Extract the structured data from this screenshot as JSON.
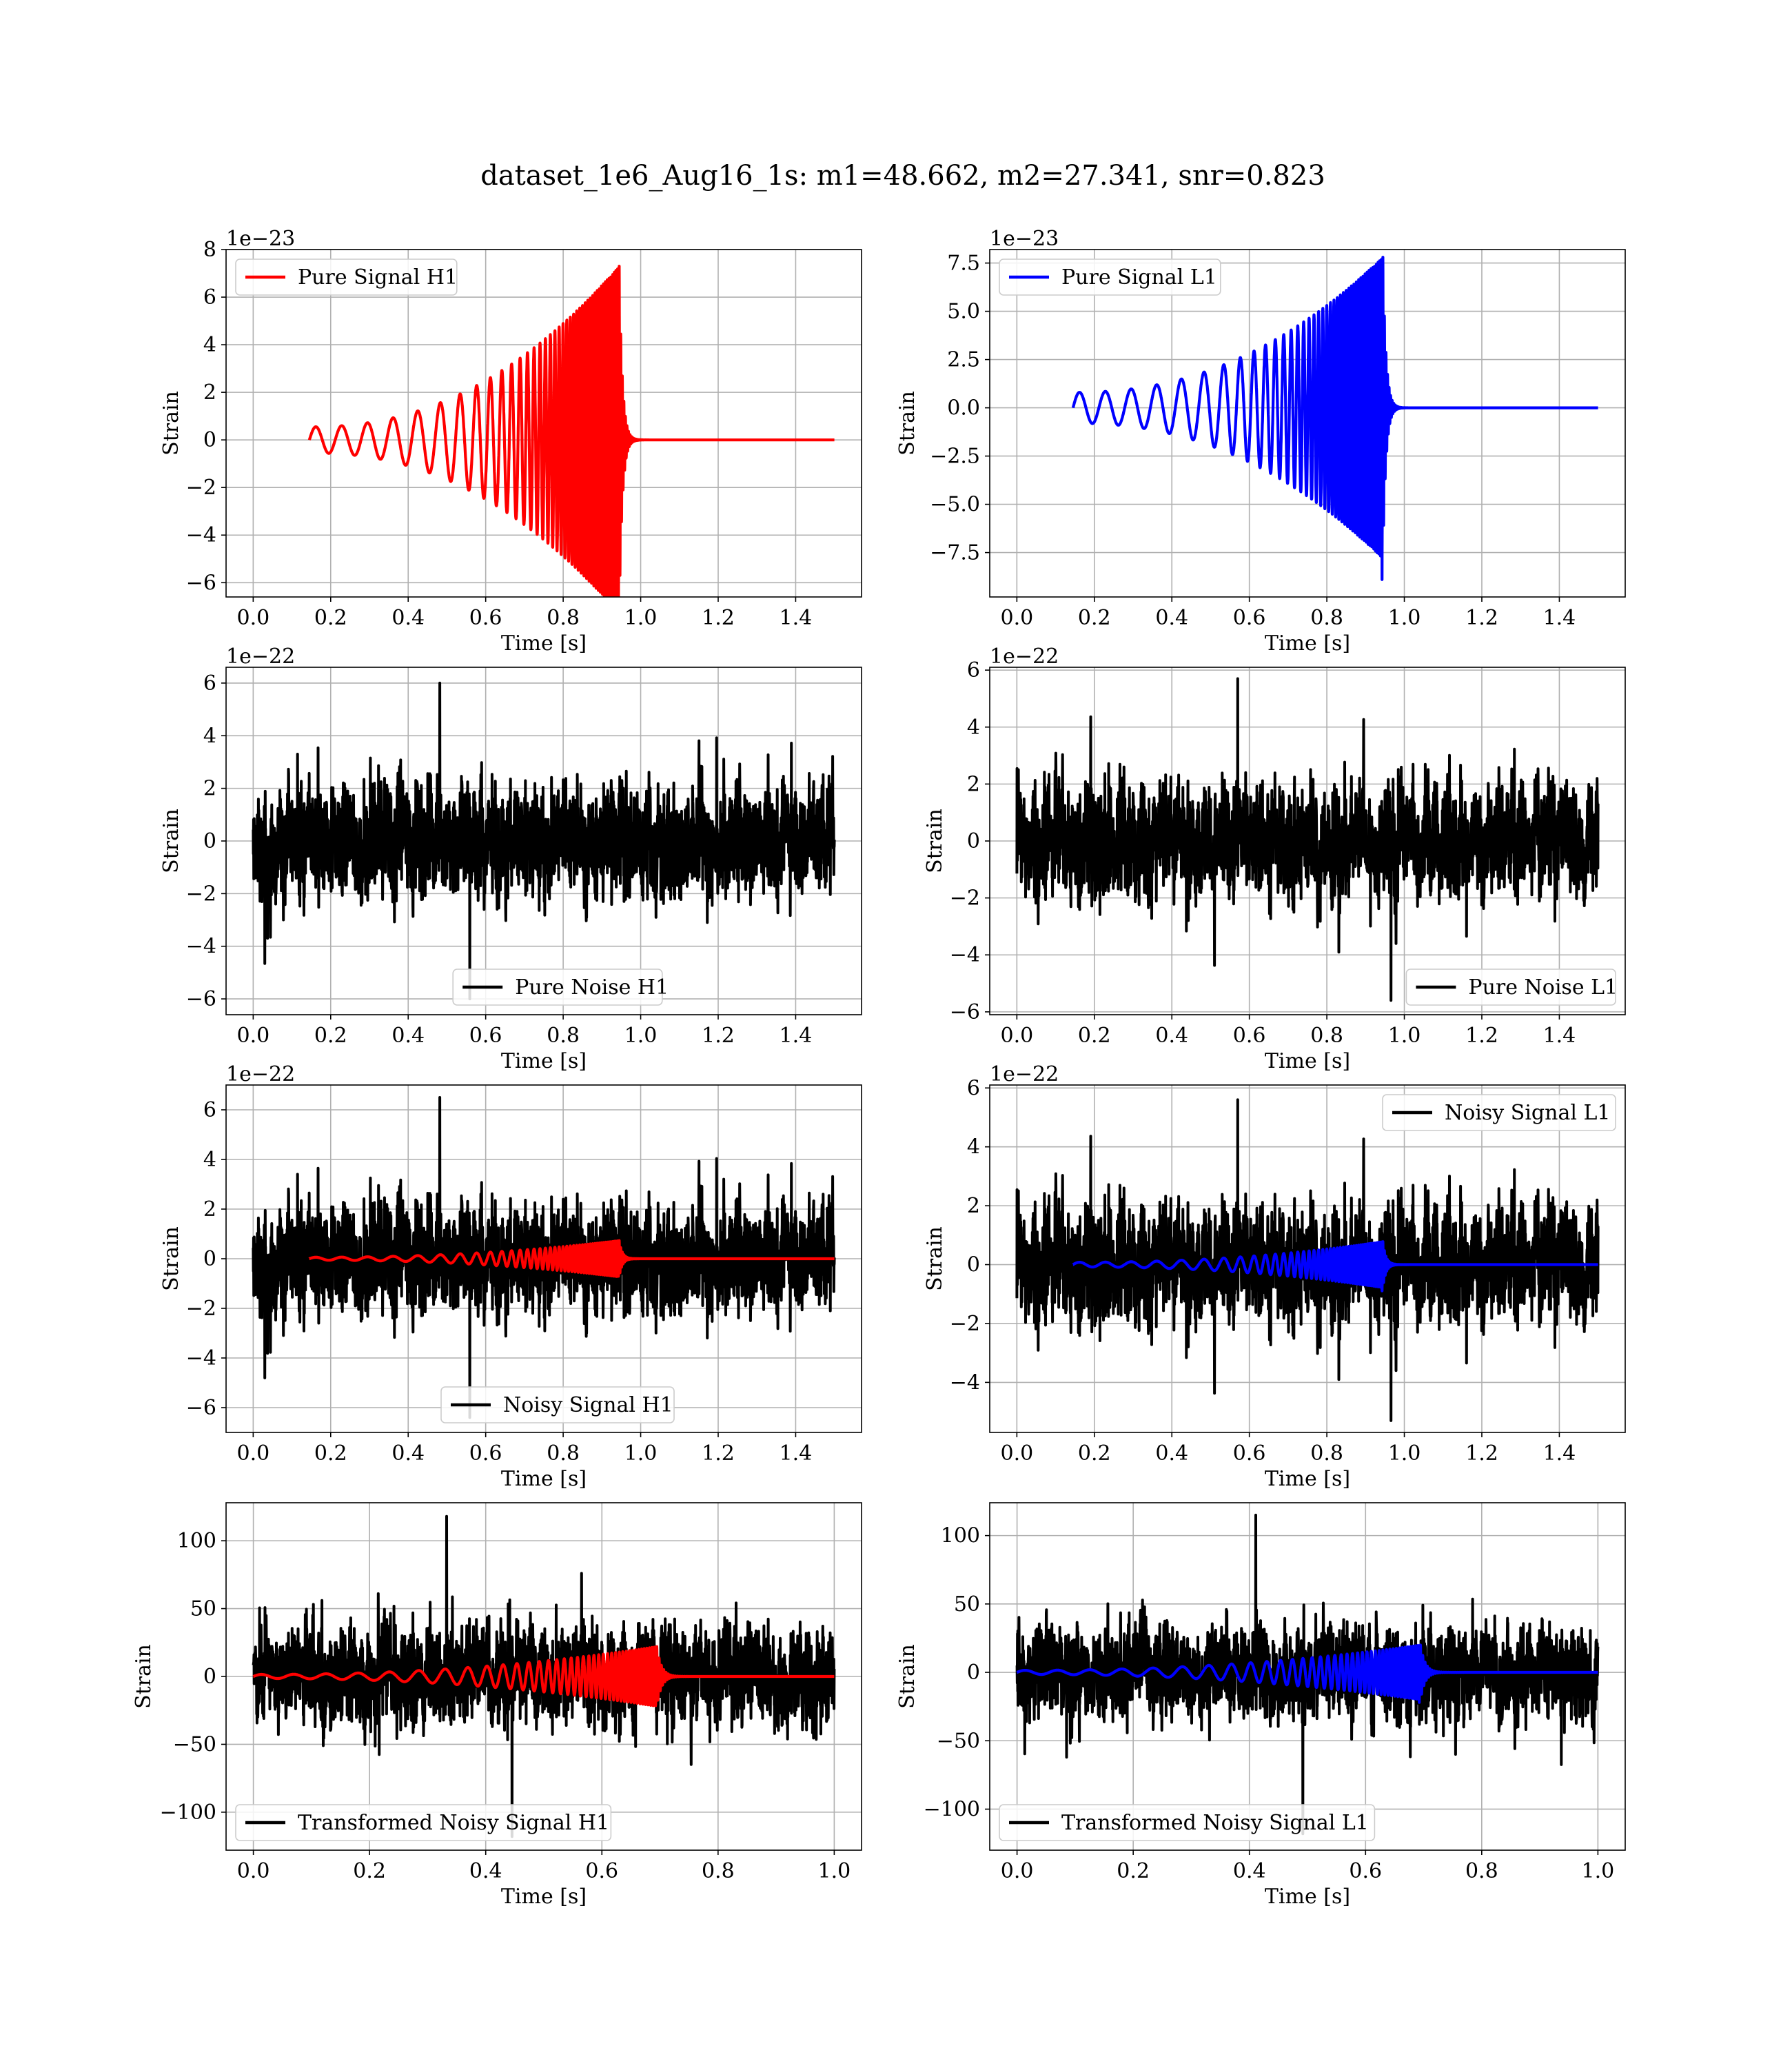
{
  "figure": {
    "title": "dataset_1e6_Aug16_1s: m1=48.662, m2=27.341, snr=0.823"
  },
  "chart_data": [
    {
      "type": "line",
      "id": "pure-signal-h1",
      "xlabel": "Time [s]",
      "ylabel": "Strain",
      "offset_text": "1e−23",
      "xlim": [
        -0.07,
        1.57
      ],
      "ylim": [
        -6.6,
        8
      ],
      "xticks": [
        0.0,
        0.2,
        0.4,
        0.6,
        0.8,
        1.0,
        1.2,
        1.4
      ],
      "xtick_labels": [
        "0.0",
        "0.2",
        "0.4",
        "0.6",
        "0.8",
        "1.0",
        "1.2",
        "1.4"
      ],
      "yticks": [
        -6,
        -4,
        -2,
        0,
        2,
        4,
        6,
        8
      ],
      "ytick_labels": [
        "−6",
        "−4",
        "−2",
        "0",
        "2",
        "4",
        "6",
        "8"
      ],
      "grid": true,
      "legend": {
        "position": "upper-left"
      },
      "series": [
        {
          "name": "Pure Signal H1",
          "color": "#ff0000",
          "kind": "chirp",
          "t_start": 0.145,
          "t_merge": 0.945,
          "t_end": 1.5,
          "amp_start": 0.55,
          "amp_peak": 7.3,
          "amp_trough": 6.2,
          "f_start": 15,
          "f_end": 250
        }
      ]
    },
    {
      "type": "line",
      "id": "pure-signal-l1",
      "xlabel": "Time [s]",
      "ylabel": "Strain",
      "offset_text": "1e−23",
      "xlim": [
        -0.07,
        1.57
      ],
      "ylim": [
        -9.8,
        8.2
      ],
      "xticks": [
        0.0,
        0.2,
        0.4,
        0.6,
        0.8,
        1.0,
        1.2,
        1.4
      ],
      "xtick_labels": [
        "0.0",
        "0.2",
        "0.4",
        "0.6",
        "0.8",
        "1.0",
        "1.2",
        "1.4"
      ],
      "yticks": [
        -7.5,
        -5.0,
        -2.5,
        0.0,
        2.5,
        5.0,
        7.5
      ],
      "ytick_labels": [
        "−7.5",
        "−5.0",
        "−2.5",
        "0.0",
        "2.5",
        "5.0",
        "7.5"
      ],
      "grid": true,
      "legend": {
        "position": "upper-left"
      },
      "series": [
        {
          "name": "Pure Signal L1",
          "color": "#0000ff",
          "kind": "chirp",
          "t_start": 0.145,
          "t_merge": 0.945,
          "t_end": 1.5,
          "amp_start": 0.8,
          "amp_peak": 7.8,
          "amp_trough": 8.9,
          "f_start": 15,
          "f_end": 250
        }
      ]
    },
    {
      "type": "line",
      "id": "pure-noise-h1",
      "xlabel": "Time [s]",
      "ylabel": "Strain",
      "offset_text": "1e−22",
      "xlim": [
        -0.07,
        1.57
      ],
      "ylim": [
        -6.6,
        6.6
      ],
      "xticks": [
        0.0,
        0.2,
        0.4,
        0.6,
        0.8,
        1.0,
        1.2,
        1.4
      ],
      "xtick_labels": [
        "0.0",
        "0.2",
        "0.4",
        "0.6",
        "0.8",
        "1.0",
        "1.2",
        "1.4"
      ],
      "yticks": [
        -6,
        -4,
        -2,
        0,
        2,
        4,
        6
      ],
      "ytick_labels": [
        "−6",
        "−4",
        "−2",
        "0",
        "2",
        "4",
        "6"
      ],
      "grid": true,
      "legend": {
        "position": "lower-center"
      },
      "series": [
        {
          "name": "Pure Noise H1",
          "color": "#000000",
          "kind": "noise",
          "t_start": 0.0,
          "t_end": 1.5,
          "amp": 1.6,
          "max": 6.0,
          "min": -6.0,
          "seed": 11
        }
      ]
    },
    {
      "type": "line",
      "id": "pure-noise-l1",
      "xlabel": "Time [s]",
      "ylabel": "Strain",
      "offset_text": "1e−22",
      "xlim": [
        -0.07,
        1.57
      ],
      "ylim": [
        -6.1,
        6.1
      ],
      "xticks": [
        0.0,
        0.2,
        0.4,
        0.6,
        0.8,
        1.0,
        1.2,
        1.4
      ],
      "xtick_labels": [
        "0.0",
        "0.2",
        "0.4",
        "0.6",
        "0.8",
        "1.0",
        "1.2",
        "1.4"
      ],
      "yticks": [
        -6,
        -4,
        -2,
        0,
        2,
        4,
        6
      ],
      "ytick_labels": [
        "−6",
        "−4",
        "−2",
        "0",
        "2",
        "4",
        "6"
      ],
      "grid": true,
      "legend": {
        "position": "lower-right"
      },
      "series": [
        {
          "name": "Pure Noise L1",
          "color": "#000000",
          "kind": "noise",
          "t_start": 0.0,
          "t_end": 1.5,
          "amp": 1.5,
          "max": 5.7,
          "min": -5.6,
          "seed": 23
        }
      ]
    },
    {
      "type": "line",
      "id": "noisy-signal-h1",
      "xlabel": "Time [s]",
      "ylabel": "Strain",
      "offset_text": "1e−22",
      "xlim": [
        -0.07,
        1.57
      ],
      "ylim": [
        -7.0,
        7.0
      ],
      "xticks": [
        0.0,
        0.2,
        0.4,
        0.6,
        0.8,
        1.0,
        1.2,
        1.4
      ],
      "xtick_labels": [
        "0.0",
        "0.2",
        "0.4",
        "0.6",
        "0.8",
        "1.0",
        "1.2",
        "1.4"
      ],
      "yticks": [
        -6,
        -4,
        -2,
        0,
        2,
        4,
        6
      ],
      "ytick_labels": [
        "−6",
        "−4",
        "−2",
        "0",
        "2",
        "4",
        "6"
      ],
      "grid": true,
      "legend": {
        "position": "lower-center"
      },
      "series": [
        {
          "name": "Noisy Signal H1",
          "color": "#000000",
          "kind": "noise",
          "t_start": 0.0,
          "t_end": 1.5,
          "amp": 1.65,
          "max": 6.5,
          "min": -6.4,
          "seed": 11
        },
        {
          "color": "#ff0000",
          "kind": "chirp",
          "t_start": 0.145,
          "t_merge": 0.945,
          "t_end": 1.5,
          "amp_start": 0.06,
          "amp_peak": 0.73,
          "amp_trough": 0.62,
          "f_start": 15,
          "f_end": 250
        }
      ]
    },
    {
      "type": "line",
      "id": "noisy-signal-l1",
      "xlabel": "Time [s]",
      "ylabel": "Strain",
      "offset_text": "1e−22",
      "xlim": [
        -0.07,
        1.57
      ],
      "ylim": [
        -5.7,
        6.1
      ],
      "xticks": [
        0.0,
        0.2,
        0.4,
        0.6,
        0.8,
        1.0,
        1.2,
        1.4
      ],
      "xtick_labels": [
        "0.0",
        "0.2",
        "0.4",
        "0.6",
        "0.8",
        "1.0",
        "1.2",
        "1.4"
      ],
      "yticks": [
        -4,
        -2,
        0,
        2,
        4,
        6
      ],
      "ytick_labels": [
        "−4",
        "−2",
        "0",
        "2",
        "4",
        "6"
      ],
      "grid": true,
      "legend": {
        "position": "upper-right"
      },
      "series": [
        {
          "name": "Noisy Signal L1",
          "color": "#000000",
          "kind": "noise",
          "t_start": 0.0,
          "t_end": 1.5,
          "amp": 1.5,
          "max": 5.6,
          "min": -5.3,
          "seed": 23
        },
        {
          "color": "#0000ff",
          "kind": "chirp",
          "t_start": 0.145,
          "t_merge": 0.945,
          "t_end": 1.5,
          "amp_start": 0.08,
          "amp_peak": 0.78,
          "amp_trough": 0.89,
          "f_start": 15,
          "f_end": 250
        }
      ]
    },
    {
      "type": "line",
      "id": "transformed-noisy-signal-h1",
      "xlabel": "Time [s]",
      "ylabel": "Strain",
      "offset_text": "",
      "xlim": [
        -0.047,
        1.047
      ],
      "ylim": [
        -128,
        128
      ],
      "xticks": [
        0.0,
        0.2,
        0.4,
        0.6,
        0.8,
        1.0
      ],
      "xtick_labels": [
        "0.0",
        "0.2",
        "0.4",
        "0.6",
        "0.8",
        "1.0"
      ],
      "yticks": [
        -100,
        -50,
        0,
        50,
        100
      ],
      "ytick_labels": [
        "−100",
        "−50",
        "0",
        "50",
        "100"
      ],
      "grid": true,
      "legend": {
        "position": "lower-left"
      },
      "series": [
        {
          "name": "Transformed Noisy Signal H1",
          "color": "#000000",
          "kind": "noise",
          "t_start": 0.0,
          "t_end": 1.0,
          "amp": 27,
          "max": 118,
          "min": -118,
          "seed": 37
        },
        {
          "color": "#ff0000",
          "kind": "chirp",
          "t_start": 0.0,
          "t_merge": 0.695,
          "t_end": 1.0,
          "amp_start": 1.5,
          "amp_peak": 22,
          "amp_trough": 16,
          "f_start": 18,
          "f_end": 250
        }
      ]
    },
    {
      "type": "line",
      "id": "transformed-noisy-signal-l1",
      "xlabel": "Time [s]",
      "ylabel": "Strain",
      "offset_text": "",
      "xlim": [
        -0.047,
        1.047
      ],
      "ylim": [
        -130,
        124
      ],
      "xticks": [
        0.0,
        0.2,
        0.4,
        0.6,
        0.8,
        1.0
      ],
      "xtick_labels": [
        "0.0",
        "0.2",
        "0.4",
        "0.6",
        "0.8",
        "1.0"
      ],
      "yticks": [
        -100,
        -50,
        0,
        50,
        100
      ],
      "ytick_labels": [
        "−100",
        "−50",
        "0",
        "50",
        "100"
      ],
      "grid": true,
      "legend": {
        "position": "lower-left"
      },
      "series": [
        {
          "name": "Transformed Noisy Signal L1",
          "color": "#000000",
          "kind": "noise",
          "t_start": 0.0,
          "t_end": 1.0,
          "amp": 26,
          "max": 115,
          "min": -118,
          "seed": 53
        },
        {
          "color": "#0000ff",
          "kind": "chirp",
          "t_start": 0.0,
          "t_merge": 0.695,
          "t_end": 1.0,
          "amp_start": 1.5,
          "amp_peak": 20,
          "amp_trough": 22,
          "f_start": 18,
          "f_end": 250
        }
      ]
    }
  ]
}
